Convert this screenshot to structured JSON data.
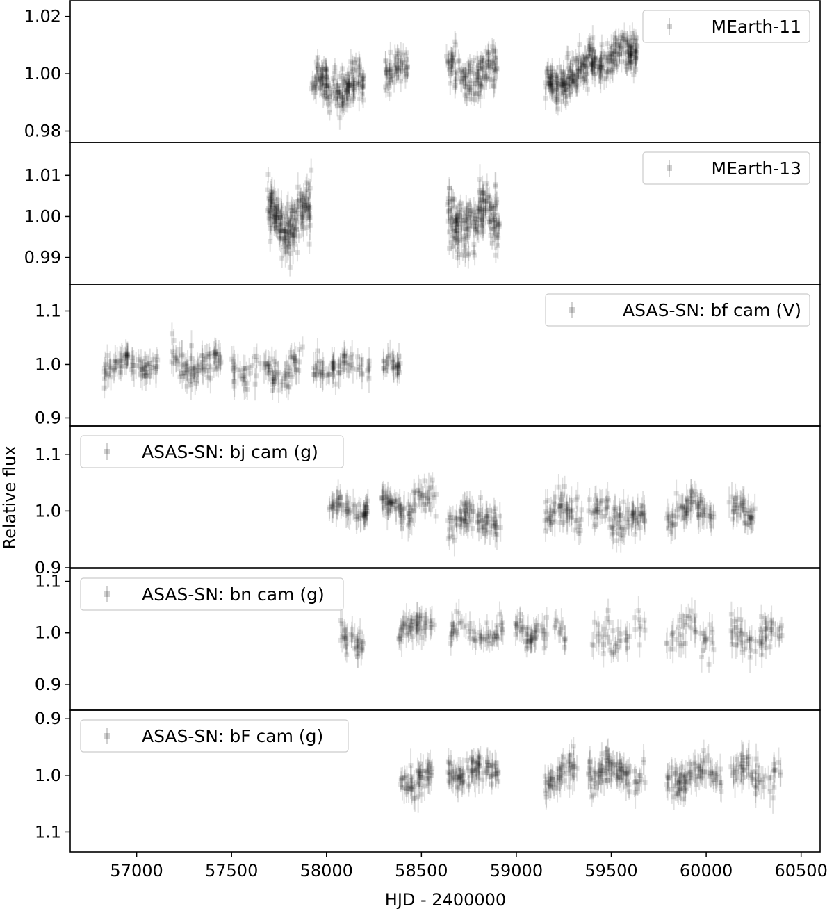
{
  "chart_data": {
    "type": "scatter",
    "xlabel": "HJD - 2400000",
    "ylabel": "Relative flux",
    "xlim": [
      56650,
      60600
    ],
    "xticks": [
      57000,
      57500,
      58000,
      58500,
      59000,
      59500,
      60000,
      60500
    ],
    "xtick_labels": [
      "57000",
      "57500",
      "58000",
      "58500",
      "59000",
      "59500",
      "60000",
      "60500"
    ],
    "marker": "square with error bar",
    "marker_color": "#000000",
    "marker_alpha": 0.12,
    "panels": [
      {
        "legend": "MEarth-11",
        "legend_position": "top-right",
        "ylim": [
          0.976,
          1.0255
        ],
        "yticks": [
          0.98,
          1.0,
          1.02
        ],
        "ytick_labels": [
          "0.98",
          "1.00",
          "1.02"
        ],
        "err": 0.003,
        "segments": [
          {
            "x_start": 57920,
            "x_end": 58200,
            "level": 0.996,
            "scatter": 0.005,
            "n": 170
          },
          {
            "x_start": 58310,
            "x_end": 58430,
            "level": 1.001,
            "scatter": 0.004,
            "n": 60
          },
          {
            "x_start": 58630,
            "x_end": 58900,
            "level": 1.0,
            "scatter": 0.005,
            "n": 140
          },
          {
            "x_start": 59150,
            "x_end": 59380,
            "level": 0.998,
            "scatter": 0.005,
            "n": 160
          },
          {
            "x_start": 59380,
            "x_end": 59640,
            "level": 1.006,
            "scatter": 0.005,
            "n": 170
          }
        ]
      },
      {
        "legend": "MEarth-13",
        "legend_position": "top-right",
        "ylim": [
          0.9835,
          1.018
        ],
        "yticks": [
          0.99,
          1.0,
          1.01
        ],
        "ytick_labels": [
          "0.99",
          "1.00",
          "1.01"
        ],
        "err": 0.0025,
        "segments": [
          {
            "x_start": 57690,
            "x_end": 57920,
            "level": 1.0,
            "scatter": 0.005,
            "n": 190
          },
          {
            "x_start": 58640,
            "x_end": 58910,
            "level": 0.999,
            "scatter": 0.005,
            "n": 190
          }
        ]
      },
      {
        "legend": "ASAS-SN: bf cam (V)",
        "legend_position": "top-right",
        "ylim": [
          0.885,
          1.15
        ],
        "yticks": [
          0.9,
          1.0,
          1.1
        ],
        "ytick_labels": [
          "0.9",
          "1.0",
          "1.1"
        ],
        "err": 0.02,
        "segments": [
          {
            "x_start": 56820,
            "x_end": 57120,
            "level": 1.0,
            "scatter": 0.015,
            "n": 80
          },
          {
            "x_start": 57180,
            "x_end": 57450,
            "level": 1.0,
            "scatter": 0.02,
            "n": 80
          },
          {
            "x_start": 57500,
            "x_end": 57880,
            "level": 0.99,
            "scatter": 0.022,
            "n": 90
          },
          {
            "x_start": 57930,
            "x_end": 58230,
            "level": 0.995,
            "scatter": 0.015,
            "n": 70
          },
          {
            "x_start": 58300,
            "x_end": 58390,
            "level": 0.995,
            "scatter": 0.015,
            "n": 30
          }
        ]
      },
      {
        "legend": "ASAS-SN: bj cam (g)",
        "legend_position": "top-left",
        "ylim": [
          0.9,
          1.15
        ],
        "yticks": [
          0.9,
          1.0,
          1.1
        ],
        "ytick_labels": [
          "0.9",
          "1.0",
          "1.1"
        ],
        "err": 0.02,
        "segments": [
          {
            "x_start": 58010,
            "x_end": 58220,
            "level": 1.003,
            "scatter": 0.012,
            "n": 60
          },
          {
            "x_start": 58290,
            "x_end": 58580,
            "level": 1.01,
            "scatter": 0.02,
            "n": 90
          },
          {
            "x_start": 58640,
            "x_end": 58920,
            "level": 0.985,
            "scatter": 0.02,
            "n": 90
          },
          {
            "x_start": 59150,
            "x_end": 59350,
            "level": 0.995,
            "scatter": 0.02,
            "n": 60
          },
          {
            "x_start": 59380,
            "x_end": 59680,
            "level": 0.99,
            "scatter": 0.022,
            "n": 90
          },
          {
            "x_start": 59790,
            "x_end": 60040,
            "level": 1.0,
            "scatter": 0.022,
            "n": 75
          },
          {
            "x_start": 60110,
            "x_end": 60260,
            "level": 0.995,
            "scatter": 0.02,
            "n": 40
          }
        ]
      },
      {
        "legend": "ASAS-SN: bn cam (g)",
        "legend_position": "top-left",
        "ylim": [
          0.85,
          1.125
        ],
        "yticks": [
          0.9,
          1.0,
          1.1
        ],
        "ytick_labels": [
          "0.9",
          "1.0",
          "1.1"
        ],
        "err": 0.02,
        "segments": [
          {
            "x_start": 58070,
            "x_end": 58200,
            "level": 0.99,
            "scatter": 0.015,
            "n": 35
          },
          {
            "x_start": 58380,
            "x_end": 58570,
            "level": 1.01,
            "scatter": 0.018,
            "n": 55
          },
          {
            "x_start": 58650,
            "x_end": 58930,
            "level": 1.0,
            "scatter": 0.018,
            "n": 60
          },
          {
            "x_start": 58990,
            "x_end": 59260,
            "level": 1.0,
            "scatter": 0.018,
            "n": 60
          },
          {
            "x_start": 59400,
            "x_end": 59680,
            "level": 1.0,
            "scatter": 0.025,
            "n": 45
          },
          {
            "x_start": 59790,
            "x_end": 60040,
            "level": 1.0,
            "scatter": 0.03,
            "n": 45
          },
          {
            "x_start": 60130,
            "x_end": 60400,
            "level": 0.995,
            "scatter": 0.022,
            "n": 65
          }
        ]
      },
      {
        "legend": "ASAS-SN: bF cam (g)",
        "legend_position": "top-left",
        "y_inverted": true,
        "ylim": [
          0.885,
          1.135
        ],
        "yticks": [
          0.9,
          1.0,
          1.1
        ],
        "ytick_labels": [
          "0.9",
          "1.0",
          "1.1"
        ],
        "err": 0.02,
        "segments": [
          {
            "x_start": 58390,
            "x_end": 58560,
            "level": 1.005,
            "scatter": 0.018,
            "n": 60
          },
          {
            "x_start": 58640,
            "x_end": 58910,
            "level": 0.99,
            "scatter": 0.018,
            "n": 90
          },
          {
            "x_start": 59150,
            "x_end": 59320,
            "level": 1.0,
            "scatter": 0.02,
            "n": 55
          },
          {
            "x_start": 59380,
            "x_end": 59680,
            "level": 0.995,
            "scatter": 0.02,
            "n": 100
          },
          {
            "x_start": 59790,
            "x_end": 60080,
            "level": 1.0,
            "scatter": 0.02,
            "n": 90
          },
          {
            "x_start": 60130,
            "x_end": 60400,
            "level": 1.0,
            "scatter": 0.02,
            "n": 60
          }
        ]
      }
    ]
  }
}
